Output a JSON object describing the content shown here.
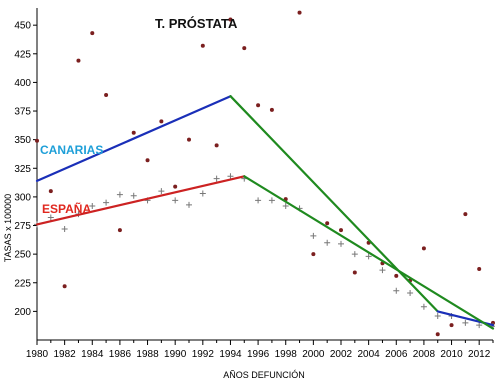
{
  "chart_data": {
    "type": "scatter",
    "title": "T. PRÓSTATA",
    "xlabel": "AÑOS DEFUNCIÓN",
    "ylabel": "TASAS x 100000",
    "xlim": [
      1980,
      2013
    ],
    "ylim": [
      175,
      465
    ],
    "x_ticks": [
      1980,
      1982,
      1984,
      1986,
      1988,
      1990,
      1992,
      1994,
      1996,
      1998,
      2000,
      2002,
      2004,
      2006,
      2008,
      2010,
      2012
    ],
    "y_ticks": [
      200,
      225,
      250,
      275,
      300,
      325,
      350,
      375,
      400,
      425,
      450
    ],
    "series_labels": [
      {
        "text": "CANARIAS",
        "color": "#1e9fd8"
      },
      {
        "text": "ESPAÑA",
        "color": "#e0281f"
      }
    ],
    "scatter_series": [
      {
        "marker": "dot",
        "color": "#7b1f1f",
        "points": [
          [
            1980,
            349
          ],
          [
            1981,
            305
          ],
          [
            1982,
            222
          ],
          [
            1983,
            419
          ],
          [
            1984,
            443
          ],
          [
            1985,
            389
          ],
          [
            1986,
            271
          ],
          [
            1987,
            356
          ],
          [
            1988,
            332
          ],
          [
            1989,
            366
          ],
          [
            1990,
            309
          ],
          [
            1991,
            350
          ],
          [
            1992,
            432
          ],
          [
            1993,
            345
          ],
          [
            1994,
            455
          ],
          [
            1995,
            430
          ],
          [
            1996,
            380
          ],
          [
            1997,
            376
          ],
          [
            1998,
            298
          ],
          [
            1999,
            461
          ],
          [
            2000,
            250
          ],
          [
            2001,
            277
          ],
          [
            2002,
            271
          ],
          [
            2003,
            234
          ],
          [
            2004,
            260
          ],
          [
            2005,
            242
          ],
          [
            2006,
            231
          ],
          [
            2007,
            227
          ],
          [
            2008,
            255
          ],
          [
            2009,
            180
          ],
          [
            2010,
            188
          ],
          [
            2011,
            285
          ],
          [
            2012,
            237
          ],
          [
            2013,
            190
          ]
        ]
      },
      {
        "marker": "plus",
        "color": "#777777",
        "points": [
          [
            1980,
            276
          ],
          [
            1981,
            282
          ],
          [
            1982,
            272
          ],
          [
            1983,
            285
          ],
          [
            1984,
            292
          ],
          [
            1985,
            295
          ],
          [
            1986,
            302
          ],
          [
            1987,
            301
          ],
          [
            1988,
            297
          ],
          [
            1989,
            305
          ],
          [
            1990,
            297
          ],
          [
            1991,
            293
          ],
          [
            1992,
            303
          ],
          [
            1993,
            316
          ],
          [
            1994,
            318
          ],
          [
            1995,
            316
          ],
          [
            1996,
            297
          ],
          [
            1997,
            297
          ],
          [
            1998,
            292
          ],
          [
            1999,
            290
          ],
          [
            2000,
            266
          ],
          [
            2001,
            260
          ],
          [
            2002,
            259
          ],
          [
            2003,
            250
          ],
          [
            2004,
            248
          ],
          [
            2005,
            236
          ],
          [
            2006,
            218
          ],
          [
            2007,
            216
          ],
          [
            2008,
            204
          ],
          [
            2009,
            196
          ],
          [
            2010,
            196
          ],
          [
            2011,
            190
          ],
          [
            2012,
            188
          ],
          [
            2013,
            187
          ]
        ]
      }
    ],
    "trend_lines": [
      {
        "color": "#1a2fb8",
        "points": [
          [
            1980,
            314
          ],
          [
            1994,
            388
          ]
        ]
      },
      {
        "color": "#1f8a1f",
        "points": [
          [
            1994,
            388
          ],
          [
            2009,
            200
          ]
        ]
      },
      {
        "color": "#1a2fb8",
        "points": [
          [
            2009,
            200
          ],
          [
            2013,
            188
          ]
        ]
      },
      {
        "color": "#cc2222",
        "points": [
          [
            1980,
            276
          ],
          [
            1995,
            318
          ]
        ]
      },
      {
        "color": "#1f8a1f",
        "points": [
          [
            1995,
            318
          ],
          [
            2013,
            185
          ]
        ]
      }
    ]
  }
}
